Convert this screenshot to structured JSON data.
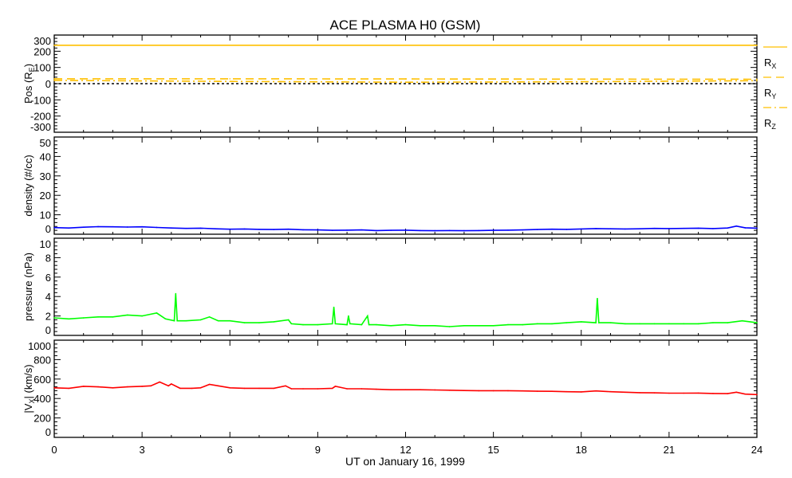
{
  "chart_data": {
    "title": "ACE PLASMA H0 (GSM)",
    "xlabel": "UT on January 16, 1999",
    "xlim": [
      0,
      24
    ],
    "xticks": [
      0,
      3,
      6,
      9,
      12,
      15,
      18,
      21,
      24
    ],
    "panels": [
      {
        "type": "line",
        "ylabel": "Pos (R",
        "ylabel_sub": "E",
        "ylabel_end": ")",
        "ylim": [
          -300,
          300
        ],
        "yticks": [
          -300,
          -200,
          -100,
          0,
          100,
          200,
          300
        ],
        "series": [
          {
            "name": "R",
            "sub": "X",
            "color": "#ffc000",
            "dash": "solid",
            "x": [
              0,
              24
            ],
            "y": [
              237,
              237
            ]
          },
          {
            "name": "R",
            "sub": "Y",
            "color": "#ffc000",
            "dash": "dashed",
            "x": [
              0,
              6,
              12,
              18,
              24
            ],
            "y": [
              30,
              30,
              29,
              28,
              27
            ]
          },
          {
            "name": "R",
            "sub": "Z",
            "color": "#ffc000",
            "dash": "dashdot",
            "x": [
              0,
              6,
              12,
              18,
              24
            ],
            "y": [
              20,
              14,
              9,
              12,
              18
            ]
          },
          {
            "name": "zero",
            "color": "#000000",
            "dash": "dotted",
            "legend": false,
            "x": [
              0,
              24
            ],
            "y": [
              0,
              0
            ]
          }
        ]
      },
      {
        "type": "line",
        "ylabel": "density (#/cc)",
        "ylim": [
          0,
          50
        ],
        "yticks": [
          0,
          10,
          20,
          30,
          40,
          50
        ],
        "series": [
          {
            "name": "density",
            "color": "#0000ff",
            "x": [
              0,
              0.5,
              1,
              1.5,
              2,
              2.5,
              3,
              3.5,
              4,
              4.5,
              5,
              5.5,
              6,
              6.5,
              7,
              7.5,
              8,
              8.5,
              9,
              9.5,
              10,
              10.5,
              11,
              11.5,
              12,
              12.5,
              13,
              13.5,
              14,
              14.5,
              15,
              15.5,
              16,
              16.5,
              17,
              17.5,
              18,
              18.5,
              19,
              19.5,
              20,
              20.5,
              21,
              21.5,
              22,
              22.5,
              23,
              23.3,
              23.6,
              24
            ],
            "y": [
              3.4,
              3.2,
              3.6,
              3.9,
              3.8,
              3.7,
              3.8,
              3.5,
              3.2,
              3.0,
              3.1,
              2.8,
              2.6,
              2.7,
              2.5,
              2.4,
              2.6,
              2.3,
              2.2,
              2.0,
              2.1,
              2.2,
              1.9,
              2.0,
              2.1,
              1.9,
              1.8,
              1.9,
              1.8,
              1.9,
              2.0,
              2.1,
              2.2,
              2.4,
              2.6,
              2.5,
              2.7,
              2.9,
              2.8,
              2.7,
              2.8,
              3.0,
              2.9,
              3.0,
              3.1,
              2.9,
              3.2,
              4.2,
              3.3,
              3.1
            ]
          }
        ]
      },
      {
        "type": "line",
        "ylabel": "pressure (nPa)",
        "ylim": [
          0,
          10
        ],
        "yticks": [
          0,
          2,
          4,
          6,
          8,
          10
        ],
        "series": [
          {
            "name": "pressure",
            "color": "#00ff00",
            "x": [
              0,
              0.5,
              1,
              1.5,
              2,
              2.5,
              3,
              3.5,
              3.8,
              4.1,
              4.15,
              4.2,
              4.5,
              5,
              5.3,
              5.6,
              6,
              6.5,
              7,
              7.5,
              8,
              8.1,
              8.5,
              9,
              9.5,
              9.55,
              9.6,
              10,
              10.05,
              10.1,
              10.5,
              10.7,
              10.75,
              11,
              11.5,
              12,
              12.5,
              13,
              13.5,
              14,
              14.5,
              15,
              15.5,
              16,
              16.5,
              17,
              17.5,
              18,
              18.5,
              18.55,
              18.6,
              19,
              19.5,
              20,
              20.5,
              21,
              21.5,
              22,
              22.5,
              23,
              23.5,
              24
            ],
            "y": [
              1.8,
              1.7,
              1.8,
              1.9,
              1.9,
              2.1,
              2.0,
              2.3,
              1.7,
              1.5,
              4.3,
              1.5,
              1.5,
              1.6,
              1.9,
              1.5,
              1.5,
              1.3,
              1.3,
              1.4,
              1.6,
              1.2,
              1.1,
              1.1,
              1.2,
              2.9,
              1.2,
              1.1,
              2.0,
              1.2,
              1.1,
              2.0,
              1.1,
              1.1,
              1.0,
              1.1,
              1.0,
              1.0,
              0.9,
              1.0,
              1.0,
              1.0,
              1.1,
              1.1,
              1.2,
              1.2,
              1.3,
              1.4,
              1.3,
              3.8,
              1.3,
              1.3,
              1.2,
              1.2,
              1.2,
              1.2,
              1.2,
              1.2,
              1.3,
              1.3,
              1.5,
              1.3
            ]
          }
        ]
      },
      {
        "type": "line",
        "ylabel": "|V",
        "ylabel_sub": "X",
        "ylabel_end": "| (km/s)",
        "ylim": [
          0,
          1000
        ],
        "yticks": [
          0,
          200,
          400,
          600,
          800,
          1000
        ],
        "series": [
          {
            "name": "|Vx|",
            "color": "#ff0000",
            "x": [
              0,
              0.5,
              1,
              1.5,
              2,
              2.5,
              3,
              3.3,
              3.6,
              3.9,
              4.0,
              4.3,
              4.7,
              5.0,
              5.3,
              5.6,
              6,
              6.5,
              7,
              7.5,
              7.9,
              8.1,
              8.5,
              9,
              9.5,
              9.6,
              10,
              10.5,
              11,
              11.5,
              12,
              12.5,
              13,
              13.5,
              14,
              14.5,
              15,
              15.5,
              16,
              16.5,
              17,
              17.5,
              18,
              18.5,
              19,
              19.5,
              20,
              20.5,
              21,
              21.5,
              22,
              22.5,
              23,
              23.3,
              23.6,
              24
            ],
            "y": [
              510,
              505,
              525,
              520,
              510,
              520,
              525,
              530,
              570,
              530,
              550,
              505,
              505,
              510,
              545,
              530,
              510,
              505,
              505,
              505,
              530,
              500,
              500,
              500,
              505,
              525,
              500,
              500,
              495,
              490,
              490,
              490,
              488,
              485,
              482,
              480,
              480,
              480,
              478,
              475,
              474,
              470,
              468,
              478,
              470,
              465,
              460,
              458,
              455,
              455,
              456,
              452,
              450,
              465,
              445,
              440
            ]
          }
        ]
      }
    ]
  }
}
